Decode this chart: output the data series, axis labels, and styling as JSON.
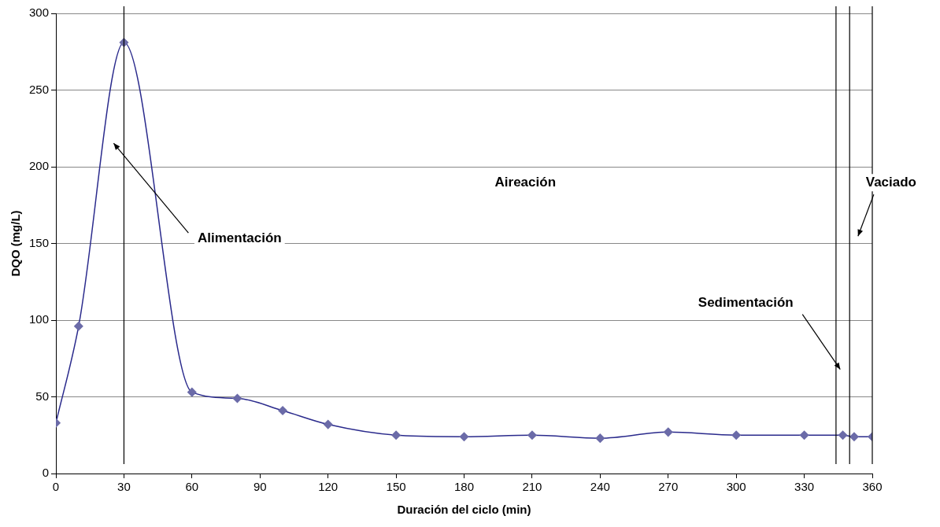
{
  "chart_data": {
    "type": "line",
    "xlabel": "Duración del ciclo (min)",
    "ylabel": "DQO (mg/L)",
    "xlim": [
      0,
      360
    ],
    "xticks": [
      0,
      30,
      60,
      90,
      120,
      150,
      180,
      210,
      240,
      270,
      300,
      330,
      360
    ],
    "ylim": [
      0,
      300
    ],
    "yticks": [
      0,
      50,
      100,
      150,
      200,
      250,
      300
    ],
    "grid": "y",
    "legend": false,
    "marker": "diamond",
    "series": [
      {
        "color": "#2a2a8c",
        "x": [
          0,
          10,
          30,
          60,
          80,
          100,
          120,
          150,
          180,
          210,
          240,
          270,
          300,
          330,
          347,
          352,
          360
        ],
        "values": [
          33,
          96,
          281,
          53,
          49,
          41,
          32,
          25,
          24,
          25,
          23,
          27,
          25,
          25,
          25,
          24,
          24
        ]
      }
    ],
    "ref_lines": [
      {
        "axis": "x",
        "value": 30,
        "color": "#000000"
      },
      {
        "axis": "x",
        "value": 344,
        "color": "#000000"
      },
      {
        "axis": "x",
        "value": 350,
        "color": "#000000"
      },
      {
        "axis": "x",
        "value": 360,
        "color": "#000000"
      }
    ],
    "annotations": [
      "Alimentación",
      "Aireación",
      "Sedimentación",
      "Vaciado"
    ]
  }
}
